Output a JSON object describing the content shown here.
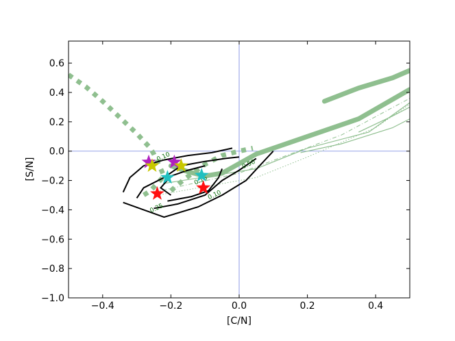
{
  "chart_data": {
    "type": "scatter",
    "title": "",
    "xlabel": "[C/N]",
    "ylabel": "[S/N]",
    "xlim": [
      -0.5,
      0.5
    ],
    "ylim": [
      -1.0,
      0.75
    ],
    "xticks": [
      -0.4,
      -0.2,
      0.0,
      0.2,
      0.4
    ],
    "yticks": [
      -1.0,
      -0.8,
      -0.6,
      -0.4,
      -0.2,
      0.0,
      0.2,
      0.4,
      0.6
    ],
    "xtick_labels": [
      "−0.4",
      "−0.2",
      "0.0",
      "0.2",
      "0.4"
    ],
    "ytick_labels": [
      "−1.0",
      "−0.8",
      "−0.6",
      "−0.4",
      "−0.2",
      "0.0",
      "0.2",
      "0.4",
      "0.6"
    ],
    "reference_lines": {
      "x": 0.0,
      "y": 0.0,
      "color": "#7080e0"
    },
    "colors": {
      "model": "#8fbf8f",
      "contour": "#000000",
      "contour_label": "#0a6e0a"
    },
    "model_tracks": [
      {
        "style": "dotted-thick",
        "points": [
          [
            -0.5,
            0.52
          ],
          [
            -0.45,
            0.44
          ],
          [
            -0.4,
            0.34
          ],
          [
            -0.35,
            0.23
          ],
          [
            -0.3,
            0.12
          ],
          [
            -0.26,
            0.02
          ],
          [
            -0.25,
            -0.02
          ],
          [
            -0.24,
            -0.07
          ],
          [
            -0.23,
            -0.12
          ],
          [
            -0.22,
            -0.17
          ],
          [
            -0.24,
            -0.22
          ],
          [
            -0.26,
            -0.27
          ],
          [
            -0.28,
            -0.3
          ]
        ]
      },
      {
        "style": "dotted-thick",
        "points": [
          [
            -0.2,
            -0.27
          ],
          [
            -0.16,
            -0.19
          ],
          [
            -0.1,
            -0.09
          ],
          [
            -0.05,
            -0.03
          ],
          [
            0.0,
            0.0
          ],
          [
            0.04,
            0.02
          ]
        ]
      },
      {
        "style": "solid-thick",
        "points": [
          [
            -0.2,
            -0.1
          ],
          [
            -0.15,
            -0.14
          ],
          [
            -0.1,
            -0.17
          ],
          [
            -0.05,
            -0.15
          ],
          [
            0.05,
            -0.02
          ],
          [
            0.2,
            0.1
          ],
          [
            0.35,
            0.22
          ],
          [
            0.5,
            0.42
          ]
        ]
      },
      {
        "style": "solid-thick",
        "points": [
          [
            0.25,
            0.34
          ],
          [
            0.35,
            0.43
          ],
          [
            0.45,
            0.5
          ],
          [
            0.5,
            0.55
          ]
        ]
      },
      {
        "style": "solid-thin",
        "points": [
          [
            -0.22,
            -0.22
          ],
          [
            0.05,
            -0.12
          ],
          [
            0.2,
            0.02
          ],
          [
            0.38,
            0.13
          ],
          [
            0.5,
            0.33
          ]
        ]
      },
      {
        "style": "solid-thin",
        "points": [
          [
            0.35,
            0.13
          ],
          [
            0.45,
            0.24
          ],
          [
            0.5,
            0.3
          ]
        ]
      },
      {
        "style": "solid-thin",
        "points": [
          [
            0.18,
            -0.01
          ],
          [
            0.3,
            0.05
          ],
          [
            0.45,
            0.16
          ],
          [
            0.5,
            0.22
          ]
        ]
      },
      {
        "style": "dashdot-thin",
        "points": [
          [
            -0.25,
            -0.28
          ],
          [
            0.0,
            -0.15
          ],
          [
            0.15,
            -0.02
          ],
          [
            0.3,
            0.11
          ],
          [
            0.5,
            0.36
          ]
        ]
      },
      {
        "style": "dotted-thin",
        "points": [
          [
            -0.24,
            -0.3
          ],
          [
            0.05,
            -0.18
          ],
          [
            0.2,
            -0.04
          ],
          [
            0.4,
            0.16
          ],
          [
            0.5,
            0.32
          ]
        ]
      }
    ],
    "contours": [
      {
        "level": "0.10",
        "points": [
          [
            -0.34,
            -0.35
          ],
          [
            -0.28,
            -0.4
          ],
          [
            -0.22,
            -0.45
          ],
          [
            -0.12,
            -0.38
          ],
          [
            -0.05,
            -0.3
          ],
          [
            0.02,
            -0.2
          ],
          [
            0.06,
            -0.1
          ],
          [
            0.1,
            0.0
          ]
        ]
      },
      {
        "level": "0.10",
        "points": [
          [
            -0.34,
            -0.28
          ],
          [
            -0.32,
            -0.18
          ],
          [
            -0.28,
            -0.1
          ],
          [
            -0.22,
            -0.06
          ],
          [
            -0.15,
            -0.03
          ],
          [
            -0.08,
            -0.01
          ],
          [
            -0.02,
            0.02
          ]
        ]
      },
      {
        "level": "0.25",
        "points": [
          [
            -0.3,
            -0.32
          ],
          [
            -0.28,
            -0.25
          ],
          [
            -0.22,
            -0.18
          ],
          [
            -0.17,
            -0.1
          ],
          [
            -0.1,
            -0.07
          ],
          [
            -0.04,
            -0.05
          ],
          [
            0.0,
            -0.04
          ]
        ]
      },
      {
        "level": "0.25",
        "points": [
          [
            -0.25,
            -0.39
          ],
          [
            -0.18,
            -0.36
          ],
          [
            -0.1,
            -0.3
          ],
          [
            -0.05,
            -0.2
          ],
          [
            0.0,
            -0.13
          ],
          [
            0.05,
            -0.05
          ]
        ]
      },
      {
        "level": "0.50",
        "points": [
          [
            -0.2,
            -0.3
          ],
          [
            -0.23,
            -0.25
          ],
          [
            -0.2,
            -0.17
          ],
          [
            -0.15,
            -0.13
          ],
          [
            -0.1,
            -0.1
          ]
        ]
      },
      {
        "level": "0.50",
        "points": [
          [
            -0.21,
            -0.34
          ],
          [
            -0.14,
            -0.31
          ],
          [
            -0.09,
            -0.27
          ],
          [
            -0.06,
            -0.18
          ],
          [
            -0.05,
            -0.12
          ]
        ]
      }
    ],
    "contour_labels": [
      {
        "text": "0.10",
        "x": -0.22,
        "y": -0.05
      },
      {
        "text": "0.50",
        "x": 0.03,
        "y": -0.1
      },
      {
        "text": "0.25",
        "x": -0.24,
        "y": -0.4
      },
      {
        "text": "0.15",
        "x": -0.11,
        "y": -0.21
      },
      {
        "text": "0.10",
        "x": -0.07,
        "y": -0.31
      }
    ],
    "stars": [
      {
        "x": -0.265,
        "y": -0.075,
        "color": "#b020c0"
      },
      {
        "x": -0.19,
        "y": -0.075,
        "color": "#b020c0"
      },
      {
        "x": -0.255,
        "y": -0.1,
        "color": "#c8c800"
      },
      {
        "x": -0.17,
        "y": -0.1,
        "color": "#c8c800"
      },
      {
        "x": -0.21,
        "y": -0.18,
        "color": "#20c0c0"
      },
      {
        "x": -0.11,
        "y": -0.165,
        "color": "#20c0c0"
      },
      {
        "x": -0.24,
        "y": -0.29,
        "color": "#ff1010"
      },
      {
        "x": -0.105,
        "y": -0.25,
        "color": "#ff1010"
      }
    ]
  }
}
